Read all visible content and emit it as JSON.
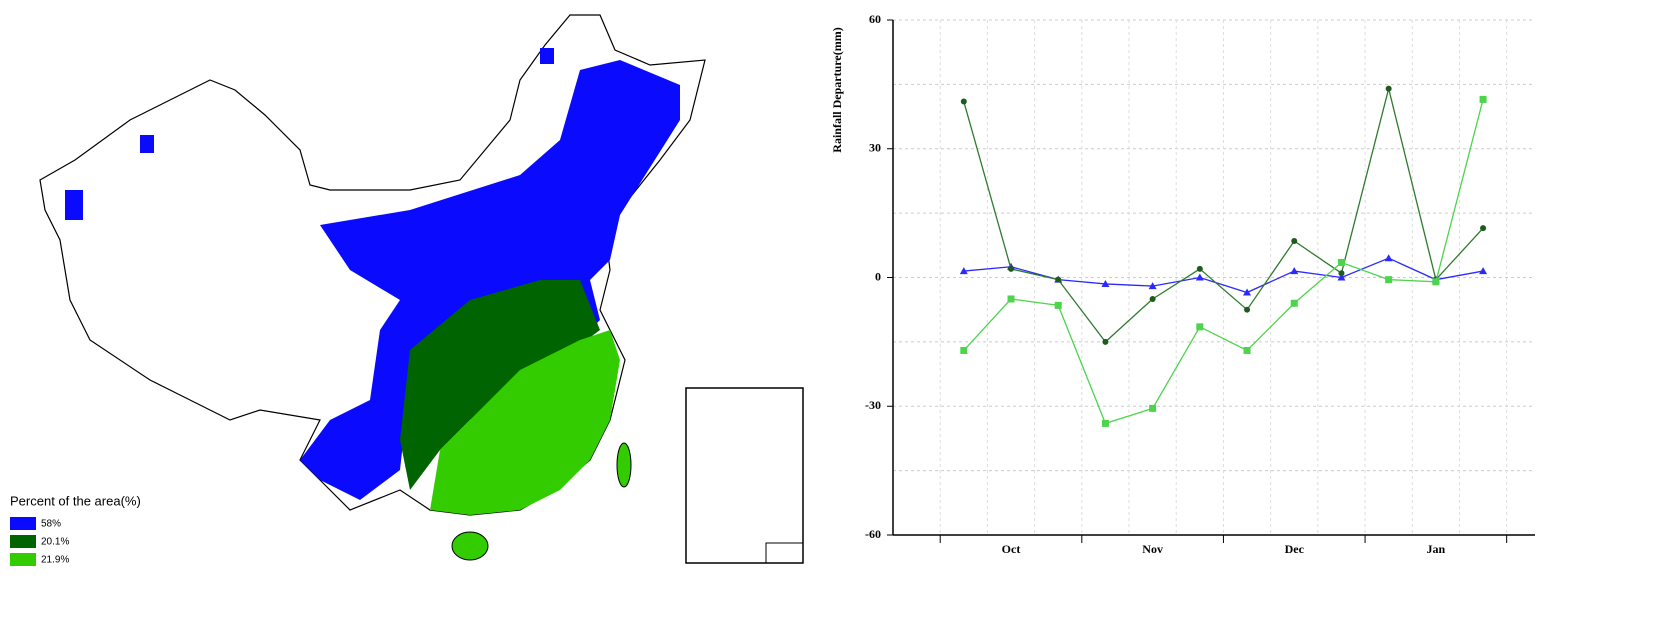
{
  "map": {
    "legend_title": "Percent of the area(%)",
    "legend": [
      {
        "color": "#0a0aff",
        "label": "58%"
      },
      {
        "color": "#006400",
        "label": "20.1%"
      },
      {
        "color": "#33cc00",
        "label": "21.9%"
      }
    ]
  },
  "chart_data": {
    "type": "line",
    "y_label": "Rainfall Departure(mm)",
    "categories": [
      null,
      "Oct",
      null,
      null,
      "Nov",
      null,
      null,
      "Dec",
      null,
      null,
      "Jan",
      null
    ],
    "series": [
      {
        "color": "#2a2aff",
        "marker": "triangle",
        "values": [
          1.5,
          2.5,
          -0.5,
          -1.5,
          -2,
          0,
          -3.5,
          1.5,
          0,
          4.5,
          -0.5,
          1.5
        ]
      },
      {
        "color": "#2f7a2f",
        "marker": "circle",
        "values": [
          41,
          2,
          -0.5,
          -15,
          -5,
          2,
          -7.5,
          8.5,
          1,
          44,
          -0.5,
          11.5
        ]
      },
      {
        "color": "#4cd44c",
        "marker": "square",
        "values": [
          -17,
          -5,
          -6.5,
          -34,
          -30.5,
          -11.5,
          -17,
          -6,
          3.5,
          -0.5,
          -1,
          41.5
        ]
      }
    ],
    "ylim": [
      -60,
      60
    ],
    "yticks": [
      -60,
      -30,
      0,
      30,
      60
    ],
    "minor_yticks": [
      -45,
      -15,
      15,
      45
    ],
    "grid": true
  }
}
